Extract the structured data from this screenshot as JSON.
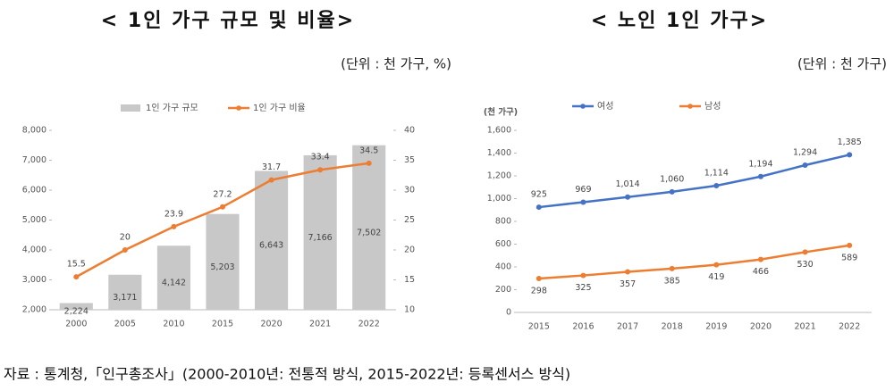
{
  "chart_data": [
    {
      "type": "combo",
      "title": "< 1인 가구 규모 및 비율>",
      "subtitle": "(단위 : 천 가구, %)",
      "categories": [
        "2000",
        "2005",
        "2010",
        "2015",
        "2020",
        "2021",
        "2022"
      ],
      "series": [
        {
          "name": "1인 가구 규모",
          "type": "bar",
          "color": "#c8c8c8",
          "values": [
            2224,
            3171,
            4142,
            5203,
            6643,
            7166,
            7502
          ],
          "value_labels": [
            "2,224",
            "3,171",
            "4,142",
            "5,203",
            "6,643",
            "7,166",
            "7,502"
          ]
        },
        {
          "name": "1인 가구 비율",
          "type": "line",
          "axis": "y2",
          "color": "#ed7d31",
          "values": [
            15.5,
            20,
            23.9,
            27.2,
            31.7,
            33.4,
            34.5
          ]
        }
      ],
      "ylim": [
        2000,
        8000
      ],
      "yticks": [
        {
          "value": 2000,
          "label": "2,000"
        },
        {
          "value": 3000,
          "label": "3,000"
        },
        {
          "value": 4000,
          "label": "4,000"
        },
        {
          "value": 5000,
          "label": "5,000"
        },
        {
          "value": 6000,
          "label": "6,000"
        },
        {
          "value": 7000,
          "label": "7,000"
        },
        {
          "value": 8000,
          "label": "8,000"
        }
      ],
      "y2lim": [
        10,
        40
      ],
      "y2ticks": [
        10,
        15,
        20,
        25,
        30,
        35,
        40
      ],
      "legend": "top"
    },
    {
      "type": "line",
      "title": "< 노인 1인 가구>",
      "subtitle": "(단위 : 천 가구)",
      "ylabel": "(천 가구)",
      "categories": [
        "2015",
        "2016",
        "2017",
        "2018",
        "2019",
        "2020",
        "2021",
        "2022"
      ],
      "series": [
        {
          "name": "여성",
          "color": "#4472c4",
          "values": [
            925,
            969,
            1014,
            1060,
            1114,
            1194,
            1294,
            1385
          ],
          "value_labels": [
            "925",
            "969",
            "1,014",
            "1,060",
            "1,114",
            "1,194",
            "1,294",
            "1,385"
          ]
        },
        {
          "name": "남성",
          "color": "#ed7d31",
          "values": [
            298,
            325,
            357,
            385,
            419,
            466,
            530,
            589
          ]
        }
      ],
      "ylim": [
        0,
        1600
      ],
      "yticks": [
        0,
        200,
        400,
        600,
        800,
        {
          "value": 1000,
          "label": "1,000"
        },
        {
          "value": 1200,
          "label": "1,200"
        },
        {
          "value": 1400,
          "label": "1,400"
        },
        {
          "value": 1600,
          "label": "1,600"
        }
      ],
      "legend": "top"
    }
  ],
  "footer": "자료 : 통계청,「인구총조사」(2000-2010년: 전통적 방식, 2015-2022년: 등록센서스 방식)"
}
